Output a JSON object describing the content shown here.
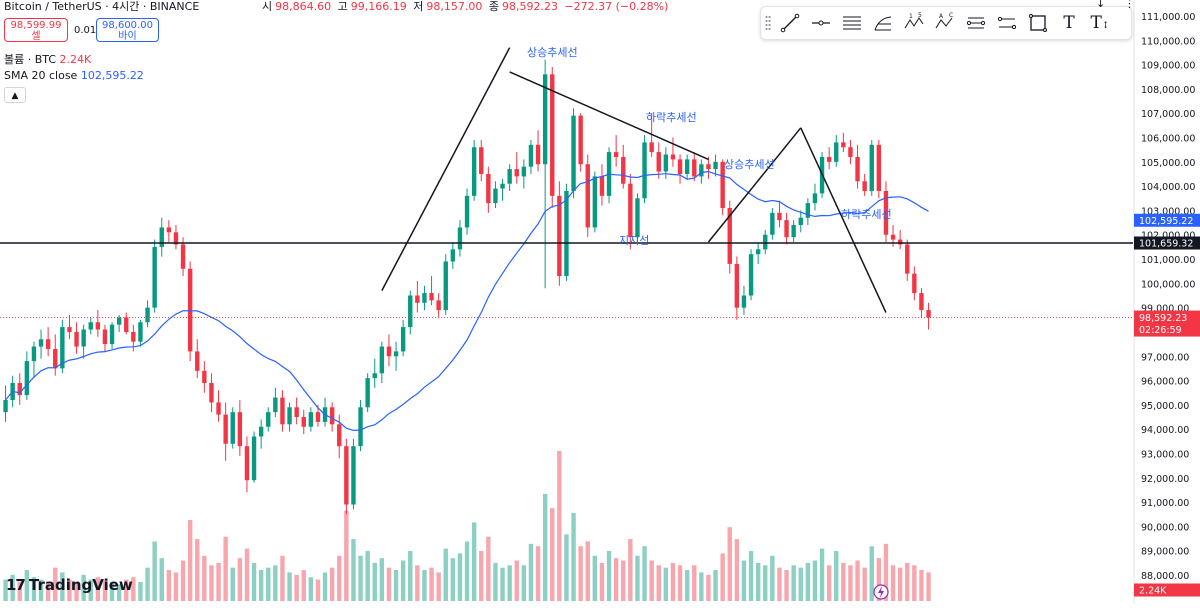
{
  "header": {
    "symbol": "Bitcoin / TetherUS · 4시간 · BINANCE",
    "ohlc": [
      {
        "label": "시",
        "value": "98,864.60"
      },
      {
        "label": "고",
        "value": "99,166.19"
      },
      {
        "label": "저",
        "value": "98,157.00"
      },
      {
        "label": "종",
        "value": "98,592.23"
      }
    ],
    "change": "−272.37 (−0.28%)"
  },
  "trade": {
    "sell_price": "98,599.99",
    "sell_label": "셀",
    "spread": "0.01",
    "buy_price": "98,600.00",
    "buy_label": "바이"
  },
  "indicators": {
    "volume_label": "볼륨 · BTC",
    "volume_value": "2.24K",
    "sma_label": "SMA 20 close",
    "sma_value": "102,595.22"
  },
  "toolbar": {
    "tools": [
      "trend-line-icon",
      "horizontal-ray-icon",
      "parallel-channel-icon",
      "fib-icon",
      "xabcd-pattern-icon",
      "abcd-pattern-icon",
      "long-position-icon",
      "date-range-icon",
      "rectangle-icon",
      "text-icon",
      "text-note-icon"
    ],
    "pattern_labels": [
      "1",
      "5",
      "A",
      "C"
    ]
  },
  "drawings": {
    "labels": [
      "상승추세선",
      "하락추세선",
      "상승추세선",
      "지지선",
      "하락추세선"
    ]
  },
  "price_axis": {
    "ticks": [
      "111,000.00",
      "110,000.00",
      "109,000.00",
      "108,000.00",
      "107,000.00",
      "106,000.00",
      "105,000.00",
      "104,000.00",
      "103,000.00",
      "102,000.00",
      "101,000.00",
      "100,000.00",
      "99,000.00",
      "97,000.00",
      "96,000.00",
      "95,000.00",
      "94,000.00",
      "93,000.00",
      "92,000.00",
      "91,000.00",
      "90,000.00",
      "89,000.00",
      "88,000.00"
    ],
    "sma_badge": "102,595.22",
    "support_badge": "101,659.32",
    "price_badge": "98,592.23",
    "countdown": "02:26:59",
    "volume_badge": "2.24K"
  },
  "colors": {
    "up": "#089981",
    "down": "#F23645",
    "sma": "#2962FF",
    "volume_up": "#8cd0c4",
    "volume_down": "#f7a6ad"
  },
  "brand": {
    "logo_mark": "17",
    "name": "TradingView"
  },
  "chart_data": {
    "type": "candlestick",
    "sma_period": 20,
    "support_level": 101659.32,
    "last_price": 98592.23,
    "ylim": [
      87500,
      111300
    ],
    "candles": [
      [
        94700,
        95800,
        94300,
        95200
      ],
      [
        95200,
        96200,
        94900,
        95900
      ],
      [
        95900,
        96300,
        95000,
        95400
      ],
      [
        95400,
        97200,
        95200,
        96800
      ],
      [
        96800,
        97600,
        96100,
        97400
      ],
      [
        97400,
        98100,
        96900,
        97700
      ],
      [
        97700,
        98200,
        97000,
        97300
      ],
      [
        97300,
        97900,
        96200,
        96500
      ],
      [
        96500,
        98500,
        96300,
        98200
      ],
      [
        98200,
        98700,
        97700,
        98000
      ],
      [
        98000,
        98400,
        97100,
        97400
      ],
      [
        97400,
        98300,
        96900,
        98100
      ],
      [
        98100,
        98600,
        97900,
        98400
      ],
      [
        98400,
        98900,
        97800,
        98100
      ],
      [
        98100,
        98300,
        97200,
        97500
      ],
      [
        97500,
        98400,
        97300,
        98300
      ],
      [
        98300,
        98700,
        98000,
        98600
      ],
      [
        98600,
        98800,
        97900,
        98000
      ],
      [
        98000,
        98300,
        97200,
        97600
      ],
      [
        97600,
        98500,
        97400,
        98400
      ],
      [
        98400,
        99300,
        98200,
        99000
      ],
      [
        99000,
        101800,
        98800,
        101500
      ],
      [
        101500,
        102700,
        101100,
        102300
      ],
      [
        102300,
        102600,
        101700,
        102100
      ],
      [
        102100,
        102400,
        101400,
        101600
      ],
      [
        101600,
        101900,
        100300,
        100600
      ],
      [
        100600,
        100900,
        96800,
        97200
      ],
      [
        97200,
        97700,
        96100,
        96400
      ],
      [
        96400,
        96800,
        95500,
        95900
      ],
      [
        95900,
        96300,
        94700,
        95100
      ],
      [
        95100,
        95600,
        94300,
        94600
      ],
      [
        94600,
        95100,
        92700,
        93400
      ],
      [
        93400,
        94900,
        93200,
        94700
      ],
      [
        94700,
        95200,
        92900,
        93300
      ],
      [
        93300,
        93700,
        91400,
        91900
      ],
      [
        91900,
        93900,
        91800,
        93700
      ],
      [
        93700,
        94400,
        93200,
        94100
      ],
      [
        94100,
        94900,
        93900,
        94700
      ],
      [
        94700,
        95700,
        94500,
        95300
      ],
      [
        95300,
        95600,
        93900,
        94200
      ],
      [
        94200,
        95100,
        93900,
        94900
      ],
      [
        94900,
        95300,
        94200,
        94500
      ],
      [
        94500,
        94800,
        93800,
        94100
      ],
      [
        94100,
        94900,
        93900,
        94700
      ],
      [
        94700,
        95000,
        94100,
        94300
      ],
      [
        94300,
        95300,
        94100,
        94900
      ],
      [
        94900,
        95100,
        93900,
        94200
      ],
      [
        94200,
        94600,
        92800,
        93300
      ],
      [
        93300,
        93600,
        90500,
        90900
      ],
      [
        90900,
        93600,
        90700,
        93300
      ],
      [
        93300,
        95200,
        93100,
        94900
      ],
      [
        94900,
        96300,
        94700,
        96100
      ],
      [
        96100,
        96900,
        95700,
        96300
      ],
      [
        96300,
        97600,
        95900,
        97400
      ],
      [
        97400,
        97900,
        96600,
        97000
      ],
      [
        97000,
        97600,
        96400,
        97200
      ],
      [
        97200,
        98500,
        97000,
        98200
      ],
      [
        98200,
        99700,
        97900,
        99500
      ],
      [
        99500,
        100100,
        98800,
        99200
      ],
      [
        99200,
        99900,
        98900,
        99600
      ],
      [
        99600,
        100300,
        99100,
        99300
      ],
      [
        99300,
        99600,
        98600,
        98900
      ],
      [
        98900,
        101200,
        98700,
        100900
      ],
      [
        100900,
        101700,
        100600,
        101400
      ],
      [
        101400,
        102600,
        101100,
        102300
      ],
      [
        102300,
        103900,
        102000,
        103600
      ],
      [
        103600,
        105900,
        103400,
        105600
      ],
      [
        105600,
        105900,
        104200,
        104500
      ],
      [
        104500,
        104800,
        102900,
        103300
      ],
      [
        103300,
        104200,
        103100,
        103900
      ],
      [
        103900,
        104300,
        103400,
        104100
      ],
      [
        104100,
        104900,
        103800,
        104700
      ],
      [
        104700,
        105400,
        104100,
        104400
      ],
      [
        104400,
        105100,
        103900,
        104800
      ],
      [
        104800,
        105900,
        104500,
        105700
      ],
      [
        105700,
        106300,
        104600,
        104900
      ],
      [
        104900,
        109200,
        99800,
        108600
      ],
      [
        108600,
        108900,
        103100,
        103600
      ],
      [
        103600,
        104200,
        99900,
        100300
      ],
      [
        100300,
        104100,
        100100,
        103800
      ],
      [
        103800,
        107200,
        103500,
        106900
      ],
      [
        106900,
        107000,
        104600,
        104900
      ],
      [
        104900,
        105300,
        101900,
        102300
      ],
      [
        102300,
        104600,
        102100,
        104400
      ],
      [
        104400,
        104900,
        103200,
        103600
      ],
      [
        103600,
        105600,
        103300,
        105400
      ],
      [
        105400,
        106100,
        104800,
        105200
      ],
      [
        105200,
        105700,
        103900,
        104100
      ],
      [
        104100,
        104500,
        101400,
        101900
      ],
      [
        101900,
        103700,
        101700,
        103500
      ],
      [
        103500,
        106100,
        103300,
        105800
      ],
      [
        105800,
        107000,
        105200,
        105400
      ],
      [
        105400,
        105800,
        104300,
        104600
      ],
      [
        104600,
        105600,
        104300,
        105300
      ],
      [
        105300,
        106000,
        104800,
        105100
      ],
      [
        105100,
        105300,
        104100,
        104500
      ],
      [
        104500,
        105300,
        104300,
        105100
      ],
      [
        105100,
        105400,
        104200,
        104400
      ],
      [
        104400,
        105100,
        104100,
        104900
      ],
      [
        104900,
        105200,
        104300,
        104700
      ],
      [
        104700,
        105300,
        104400,
        105000
      ],
      [
        105000,
        105100,
        102800,
        103100
      ],
      [
        103100,
        103400,
        100400,
        100800
      ],
      [
        100800,
        101100,
        98500,
        99000
      ],
      [
        99000,
        99900,
        98700,
        99500
      ],
      [
        99500,
        101400,
        99300,
        101200
      ],
      [
        101200,
        101700,
        100800,
        101400
      ],
      [
        101400,
        102200,
        101200,
        102000
      ],
      [
        102000,
        103100,
        101800,
        102900
      ],
      [
        102900,
        103400,
        102300,
        102600
      ],
      [
        102600,
        102900,
        101600,
        101900
      ],
      [
        101900,
        102600,
        101700,
        102400
      ],
      [
        102400,
        103000,
        102100,
        102700
      ],
      [
        102700,
        103500,
        102400,
        103300
      ],
      [
        103300,
        104100,
        103000,
        103700
      ],
      [
        103700,
        105400,
        103500,
        105200
      ],
      [
        105200,
        105600,
        104700,
        105000
      ],
      [
        105000,
        106100,
        104800,
        105800
      ],
      [
        105800,
        106200,
        105400,
        105600
      ],
      [
        105600,
        105900,
        104900,
        105200
      ],
      [
        105200,
        105700,
        103900,
        104200
      ],
      [
        104200,
        104500,
        103600,
        103800
      ],
      [
        103800,
        105900,
        103600,
        105700
      ],
      [
        105700,
        105900,
        103500,
        103800
      ],
      [
        103800,
        104200,
        101700,
        102000
      ],
      [
        102000,
        102400,
        101500,
        101800
      ],
      [
        101800,
        102200,
        101400,
        101600
      ],
      [
        101600,
        101800,
        100100,
        100400
      ],
      [
        100400,
        100700,
        99300,
        99600
      ],
      [
        99600,
        99800,
        98600,
        98900
      ],
      [
        98900,
        99200,
        98100,
        98600
      ]
    ],
    "volumes": [
      0.9,
      1.1,
      0.8,
      1.3,
      1.0,
      0.9,
      0.8,
      1.4,
      1.2,
      0.9,
      0.8,
      1.1,
      0.9,
      1.0,
      0.9,
      0.8,
      0.7,
      0.9,
      1.0,
      0.8,
      1.4,
      2.5,
      1.8,
      1.3,
      1.2,
      1.7,
      3.4,
      2.6,
      1.9,
      1.5,
      1.6,
      2.7,
      1.4,
      1.8,
      2.2,
      1.6,
      1.3,
      1.4,
      1.5,
      1.9,
      1.2,
      1.1,
      1.3,
      1.0,
      0.9,
      1.2,
      1.4,
      1.9,
      3.8,
      2.6,
      1.9,
      2.1,
      1.6,
      1.8,
      1.4,
      1.3,
      1.7,
      2.1,
      1.5,
      1.3,
      1.4,
      1.2,
      2.2,
      1.8,
      2.0,
      2.5,
      3.3,
      2.1,
      2.7,
      1.6,
      1.4,
      1.5,
      1.7,
      1.5,
      2.4,
      2.3,
      4.5,
      3.9,
      6.3,
      2.8,
      3.7,
      2.3,
      2.5,
      1.9,
      1.6,
      2.1,
      1.8,
      1.7,
      2.6,
      1.9,
      2.3,
      1.7,
      1.5,
      1.4,
      1.6,
      1.5,
      1.3,
      1.5,
      1.2,
      1.1,
      1.3,
      2.0,
      3.1,
      2.6,
      1.7,
      2.1,
      1.6,
      1.5,
      1.9,
      1.4,
      1.3,
      1.5,
      1.4,
      1.6,
      1.7,
      2.2,
      1.5,
      2.1,
      1.6,
      1.5,
      1.7,
      1.4,
      2.3,
      1.8,
      2.4,
      1.5,
      1.4,
      1.6,
      1.5,
      1.3,
      1.2
    ]
  }
}
